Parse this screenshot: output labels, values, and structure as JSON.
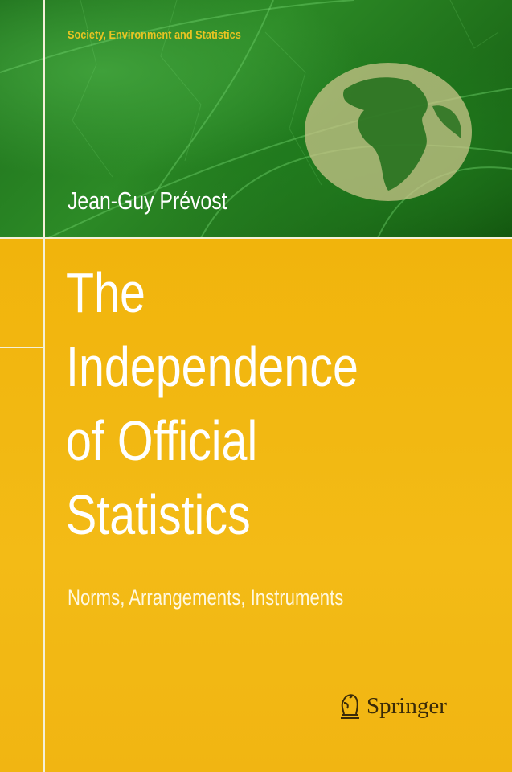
{
  "cover": {
    "series": "Society, Environment and Statistics",
    "author": "Jean-Guy Prévost",
    "title_lines": [
      "The",
      "Independence",
      "of Official",
      "Statistics"
    ],
    "subtitle": "Norms, Arrangements, Instruments",
    "publisher": "Springer",
    "publisher_logo_icon": "springer-horse-icon",
    "globe_icon": "globe-icon",
    "colors": {
      "green": "#1f7a1d",
      "yellow": "#f2b70f",
      "series_text": "#e8c422"
    }
  }
}
